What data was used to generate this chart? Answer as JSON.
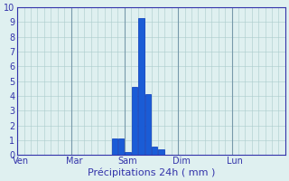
{
  "xlabel": "Précipitations 24h ( mm )",
  "background_color": "#dff0f0",
  "bar_color": "#1a5cd6",
  "bar_edge_color": "#0033bb",
  "grid_color": "#aacccc",
  "grid_color_day": "#7799aa",
  "ylim": [
    0,
    10
  ],
  "yticks": [
    0,
    1,
    2,
    3,
    4,
    5,
    6,
    7,
    8,
    9,
    10
  ],
  "total_slots": 40,
  "day_labels": [
    "Ven",
    "Mar",
    "Sam",
    "Dim",
    "Lun"
  ],
  "day_tick_positions": [
    0,
    8,
    16,
    24,
    32
  ],
  "bar_data": [
    [
      14,
      1.1
    ],
    [
      15,
      1.1
    ],
    [
      16,
      0.2
    ],
    [
      17,
      4.6
    ],
    [
      18,
      9.3
    ],
    [
      19,
      4.1
    ],
    [
      20,
      0.55
    ],
    [
      21,
      0.35
    ]
  ],
  "axis_label_color": "#3333aa",
  "tick_label_size": 7,
  "xlabel_size": 8
}
